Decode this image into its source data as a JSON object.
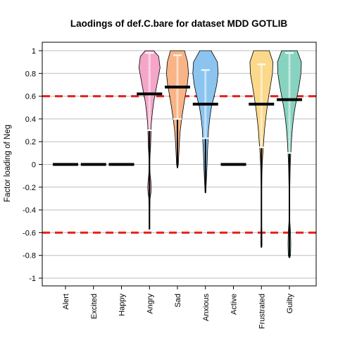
{
  "chart_data": {
    "type": "violin",
    "title": "Laodings of def.C.bare for dataset MDD GOTLIB",
    "xlabel": "",
    "ylabel": "Factor loading of Neg",
    "ylim": [
      -1,
      1
    ],
    "yticks": [
      "-1",
      "-0.8",
      "-0.6",
      "-0.4",
      "-0.2",
      "0",
      "0.2",
      "0.4",
      "0.6",
      "0.8",
      "1"
    ],
    "categories": [
      "Alert",
      "Excited",
      "Happy",
      "Angry",
      "Sad",
      "Anxious",
      "Active",
      "Frustrated",
      "Guilty"
    ],
    "grid": true,
    "reference_lines": [
      0.6,
      -0.6
    ],
    "colors": {
      "Alert": "#000000",
      "Excited": "#000000",
      "Happy": "#000000",
      "Angry": "#f3a6c8",
      "Sad": "#f8b486",
      "Anxious": "#8cc4f0",
      "Active": "#000000",
      "Frustrated": "#fbd98b",
      "Guilty": "#88d2c0",
      "reference_line": "#e8201c"
    },
    "series": [
      {
        "category": "Alert",
        "median": 0.0,
        "violin": false
      },
      {
        "category": "Excited",
        "median": 0.0,
        "violin": false
      },
      {
        "category": "Happy",
        "median": 0.0,
        "violin": false
      },
      {
        "category": "Angry",
        "median": 0.62,
        "q1": 0.3,
        "q3": 0.98,
        "min": -0.57,
        "max": 1.0,
        "violin": true,
        "profile": [
          [
            1.0,
            0.3
          ],
          [
            0.95,
            0.65
          ],
          [
            0.85,
            0.75
          ],
          [
            0.75,
            0.6
          ],
          [
            0.65,
            0.45
          ],
          [
            0.55,
            0.3
          ],
          [
            0.45,
            0.2
          ],
          [
            0.35,
            0.12
          ],
          [
            0.25,
            0.1
          ],
          [
            0.15,
            0.08
          ],
          [
            0.05,
            0.03
          ],
          [
            0.0,
            0.02
          ],
          [
            -0.05,
            0.03
          ],
          [
            -0.1,
            0.06
          ],
          [
            -0.15,
            0.1
          ],
          [
            -0.2,
            0.12
          ],
          [
            -0.25,
            0.1
          ],
          [
            -0.3,
            0.04
          ],
          [
            -0.4,
            0.02
          ],
          [
            -0.57,
            0.02
          ]
        ]
      },
      {
        "category": "Sad",
        "median": 0.68,
        "q1": 0.4,
        "q3": 0.96,
        "min": -0.03,
        "max": 1.0,
        "violin": true,
        "profile": [
          [
            1.0,
            0.5
          ],
          [
            0.9,
            0.72
          ],
          [
            0.8,
            0.78
          ],
          [
            0.7,
            0.7
          ],
          [
            0.6,
            0.55
          ],
          [
            0.5,
            0.42
          ],
          [
            0.4,
            0.3
          ],
          [
            0.3,
            0.2
          ],
          [
            0.2,
            0.14
          ],
          [
            0.1,
            0.1
          ],
          [
            0.0,
            0.06
          ],
          [
            -0.03,
            0.02
          ]
        ]
      },
      {
        "category": "Anxious",
        "median": 0.53,
        "q1": 0.23,
        "q3": 0.83,
        "min": -0.25,
        "max": 1.0,
        "violin": true,
        "profile": [
          [
            1.0,
            0.4
          ],
          [
            0.9,
            0.85
          ],
          [
            0.8,
            0.9
          ],
          [
            0.7,
            0.8
          ],
          [
            0.6,
            0.62
          ],
          [
            0.5,
            0.42
          ],
          [
            0.4,
            0.3
          ],
          [
            0.3,
            0.22
          ],
          [
            0.2,
            0.18
          ],
          [
            0.1,
            0.14
          ],
          [
            0.0,
            0.12
          ],
          [
            -0.1,
            0.08
          ],
          [
            -0.2,
            0.04
          ],
          [
            -0.25,
            0.02
          ]
        ]
      },
      {
        "category": "Active",
        "median": 0.0,
        "violin": false
      },
      {
        "category": "Frustrated",
        "median": 0.53,
        "q1": 0.15,
        "q3": 0.88,
        "min": -0.73,
        "max": 1.0,
        "violin": true,
        "profile": [
          [
            1.0,
            0.55
          ],
          [
            0.9,
            0.82
          ],
          [
            0.8,
            0.78
          ],
          [
            0.7,
            0.65
          ],
          [
            0.6,
            0.52
          ],
          [
            0.5,
            0.4
          ],
          [
            0.4,
            0.3
          ],
          [
            0.3,
            0.22
          ],
          [
            0.2,
            0.16
          ],
          [
            0.1,
            0.1
          ],
          [
            0.0,
            0.06
          ],
          [
            -0.1,
            0.03
          ],
          [
            -0.2,
            0.02
          ],
          [
            -0.4,
            0.02
          ],
          [
            -0.55,
            0.02
          ],
          [
            -0.6,
            0.03
          ],
          [
            -0.7,
            0.04
          ],
          [
            -0.73,
            0.02
          ]
        ]
      },
      {
        "category": "Guilty",
        "median": 0.57,
        "q1": 0.1,
        "q3": 0.98,
        "min": -0.82,
        "max": 1.0,
        "violin": true,
        "profile": [
          [
            1.0,
            0.55
          ],
          [
            0.9,
            0.85
          ],
          [
            0.8,
            0.82
          ],
          [
            0.7,
            0.7
          ],
          [
            0.6,
            0.55
          ],
          [
            0.5,
            0.4
          ],
          [
            0.4,
            0.28
          ],
          [
            0.3,
            0.2
          ],
          [
            0.2,
            0.14
          ],
          [
            0.1,
            0.1
          ],
          [
            0.0,
            0.06
          ],
          [
            -0.2,
            0.03
          ],
          [
            -0.4,
            0.02
          ],
          [
            -0.5,
            0.03
          ],
          [
            -0.6,
            0.08
          ],
          [
            -0.7,
            0.1
          ],
          [
            -0.8,
            0.08
          ],
          [
            -0.82,
            0.03
          ]
        ]
      }
    ]
  }
}
